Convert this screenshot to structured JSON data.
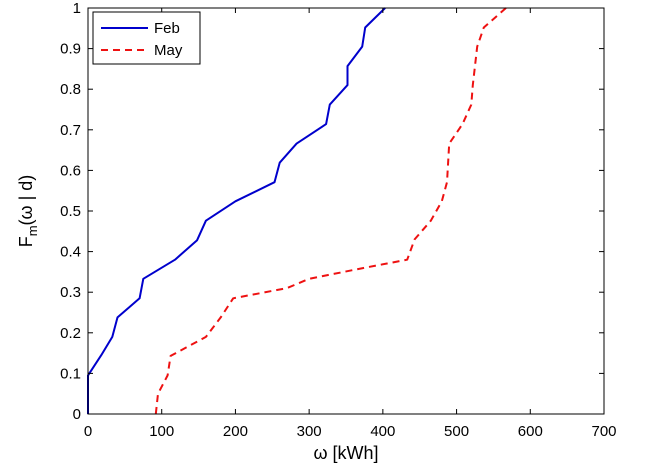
{
  "chart_data": {
    "type": "line",
    "title": "",
    "xlabel": "ω [kWh]",
    "ylabel": {
      "main": "F",
      "subscript": "m",
      "rest": "(ω | d)"
    },
    "xlim": [
      0,
      700
    ],
    "ylim": [
      0,
      1
    ],
    "x_ticks": [
      0,
      100,
      200,
      300,
      400,
      500,
      600,
      700
    ],
    "y_ticks": [
      0,
      0.1,
      0.2,
      0.3,
      0.4,
      0.5,
      0.6,
      0.7,
      0.8,
      0.9,
      1
    ],
    "grid": false,
    "legend_position": "top-left",
    "series": [
      {
        "name": "Feb",
        "color": "#0000cc",
        "style": "solid",
        "points": [
          [
            0,
            0
          ],
          [
            0,
            0.095
          ],
          [
            18,
            0.145
          ],
          [
            33,
            0.19
          ],
          [
            40,
            0.238
          ],
          [
            70,
            0.285
          ],
          [
            75,
            0.333
          ],
          [
            118,
            0.38
          ],
          [
            148,
            0.428
          ],
          [
            160,
            0.476
          ],
          [
            200,
            0.524
          ],
          [
            253,
            0.571
          ],
          [
            260,
            0.619
          ],
          [
            283,
            0.666
          ],
          [
            323,
            0.714
          ],
          [
            328,
            0.762
          ],
          [
            352,
            0.81
          ],
          [
            352,
            0.857
          ],
          [
            372,
            0.905
          ],
          [
            376,
            0.952
          ],
          [
            403,
            1.0
          ]
        ]
      },
      {
        "name": "May",
        "color": "#ee1111",
        "style": "dashed",
        "points": [
          [
            92,
            0
          ],
          [
            95,
            0.05
          ],
          [
            108,
            0.095
          ],
          [
            112,
            0.143
          ],
          [
            160,
            0.19
          ],
          [
            180,
            0.238
          ],
          [
            197,
            0.285
          ],
          [
            270,
            0.31
          ],
          [
            300,
            0.333
          ],
          [
            375,
            0.36
          ],
          [
            433,
            0.38
          ],
          [
            443,
            0.43
          ],
          [
            465,
            0.476
          ],
          [
            480,
            0.524
          ],
          [
            487,
            0.571
          ],
          [
            490,
            0.666
          ],
          [
            508,
            0.714
          ],
          [
            520,
            0.762
          ],
          [
            522,
            0.81
          ],
          [
            528,
            0.905
          ],
          [
            537,
            0.952
          ],
          [
            567,
            1.0
          ]
        ]
      }
    ]
  }
}
